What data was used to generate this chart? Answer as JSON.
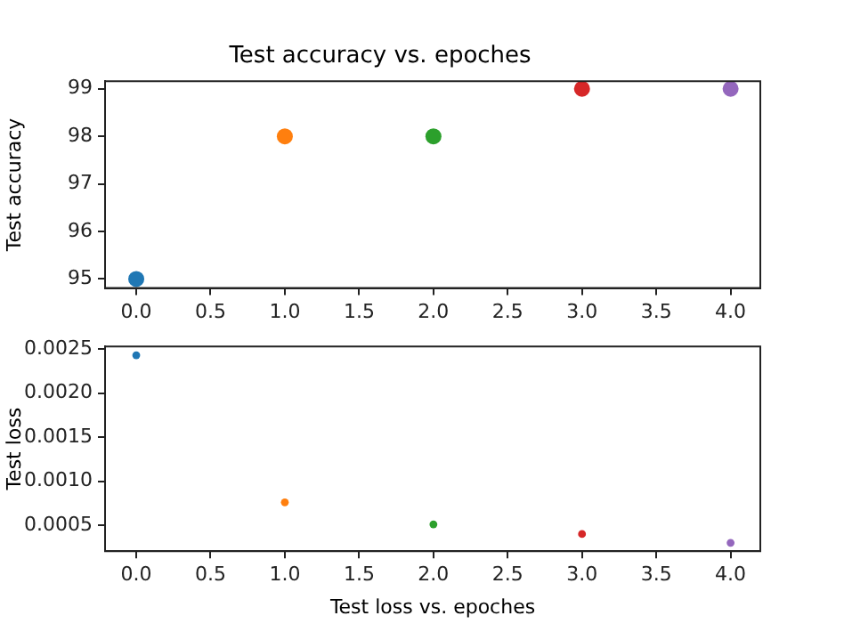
{
  "chart_data": [
    {
      "type": "scatter",
      "title": "Test accuracy vs. epoches",
      "ylabel": "Test accuracy",
      "x": [
        0,
        1,
        2,
        3,
        4
      ],
      "values": [
        95,
        98,
        98,
        99,
        99
      ],
      "colors": [
        "#1f77b4",
        "#ff7f0e",
        "#2ca02c",
        "#d62728",
        "#9467bd"
      ],
      "xlim": [
        -0.21,
        4.2
      ],
      "ylim": [
        94.81,
        99.16
      ],
      "xticks": [
        {
          "value": 0,
          "label": "0.0"
        },
        {
          "value": 0.5,
          "label": "0.5"
        },
        {
          "value": 1,
          "label": "1.0"
        },
        {
          "value": 1.5,
          "label": "1.5"
        },
        {
          "value": 2,
          "label": "2.0"
        },
        {
          "value": 2.5,
          "label": "2.5"
        },
        {
          "value": 3,
          "label": "3.0"
        },
        {
          "value": 3.5,
          "label": "3.5"
        },
        {
          "value": 4,
          "label": "4.0"
        }
      ],
      "yticks": [
        95,
        96,
        97,
        98,
        99
      ],
      "grid": false,
      "legend": false,
      "marker": "circle"
    },
    {
      "type": "scatter",
      "xlabel": "Test loss vs. epoches",
      "ylabel": "Test loss",
      "x": [
        0,
        1,
        2,
        3,
        4
      ],
      "values": [
        0.00243,
        0.00076,
        0.00051,
        0.0004,
        0.0003
      ],
      "colors": [
        "#1f77b4",
        "#ff7f0e",
        "#2ca02c",
        "#d62728",
        "#9467bd"
      ],
      "xlim": [
        -0.21,
        4.2
      ],
      "ylim": [
        0.000205,
        0.00253
      ],
      "xticks": [
        {
          "value": 0,
          "label": "0.0"
        },
        {
          "value": 0.5,
          "label": "0.5"
        },
        {
          "value": 1,
          "label": "1.0"
        },
        {
          "value": 1.5,
          "label": "1.5"
        },
        {
          "value": 2,
          "label": "2.0"
        },
        {
          "value": 2.5,
          "label": "2.5"
        },
        {
          "value": 3,
          "label": "3.0"
        },
        {
          "value": 3.5,
          "label": "3.5"
        },
        {
          "value": 4,
          "label": "4.0"
        }
      ],
      "yticks": [
        {
          "value": 0.0005,
          "label": "0.0005"
        },
        {
          "value": 0.001,
          "label": "0.0010"
        },
        {
          "value": 0.0015,
          "label": "0.0015"
        },
        {
          "value": 0.002,
          "label": "0.0020"
        },
        {
          "value": 0.0025,
          "label": "0.0025"
        }
      ],
      "grid": false,
      "legend": false,
      "marker": "circle"
    }
  ]
}
